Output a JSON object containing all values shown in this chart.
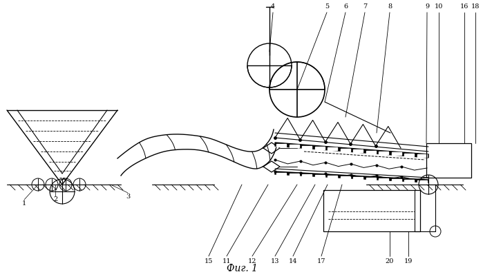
{
  "title": "Фиг. 1",
  "bg_color": "#ffffff",
  "line_color": "#000000",
  "figsize": [
    6.99,
    3.95
  ],
  "dpi": 100
}
